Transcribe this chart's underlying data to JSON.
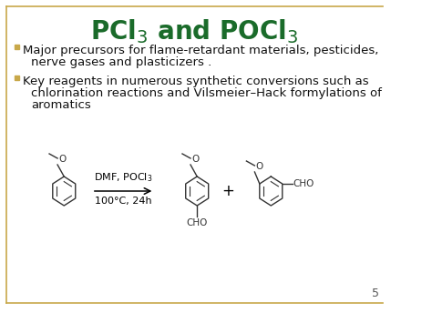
{
  "background_color": "#ffffff",
  "border_color": "#c8a84a",
  "title_color": "#1a6b2a",
  "title_fontsize": 20,
  "bullet_color": "#c8a84a",
  "bullet1_line1": "Major precursors for flame-retardant materials, pesticides,",
  "bullet1_line2": "nerve gases and plasticizers .",
  "bullet2_line1": "Key reagents in numerous synthetic conversions such as",
  "bullet2_line2": "chlorination reactions and Vilsmeier–Hack formylations of",
  "bullet2_line3": "aromatics",
  "body_fontsize": 9.5,
  "body_color": "#111111",
  "reaction_label_top": "DMF, POCl$_3$",
  "reaction_label_bottom": "100°C, 24h",
  "reaction_label_fontsize": 8,
  "plus_sign": "+",
  "page_number": "5",
  "page_number_color": "#555555",
  "page_number_fontsize": 9
}
